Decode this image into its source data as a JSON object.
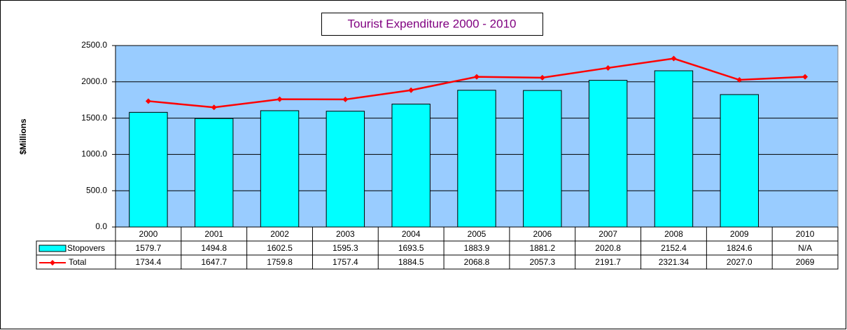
{
  "chart_data": {
    "type": "bar_line_table",
    "title": "Tourist Expenditure 2000 - 2010",
    "y_label": "$Millions",
    "categories": [
      "2000",
      "2001",
      "2002",
      "2003",
      "2004",
      "2005",
      "2006",
      "2007",
      "2008",
      "2009",
      "2010"
    ],
    "series": [
      {
        "name": "Stopovers",
        "type": "bar",
        "color": "#00ffff",
        "values": [
          1579.7,
          1494.8,
          1602.5,
          1595.3,
          1693.5,
          1883.9,
          1881.2,
          2020.8,
          2152.4,
          1824.6,
          null
        ],
        "value_labels": [
          "1579.7",
          "1494.8",
          "1602.5",
          "1595.3",
          "1693.5",
          "1883.9",
          "1881.2",
          "2020.8",
          "2152.4",
          "1824.6",
          "N/A"
        ]
      },
      {
        "name": "Total",
        "type": "line",
        "color": "#ff0000",
        "values": [
          1734.4,
          1647.7,
          1759.8,
          1757.4,
          1884.5,
          2068.8,
          2057.3,
          2191.7,
          2321.34,
          2027.0,
          2069
        ],
        "value_labels": [
          "1734.4",
          "1647.7",
          "1759.8",
          "1757.4",
          "1884.5",
          "2068.8",
          "2057.3",
          "2191.7",
          "2321.34",
          "2027.0",
          "2069"
        ]
      }
    ],
    "ylim": [
      0,
      2500
    ],
    "yticks": [
      {
        "value": 0,
        "label": "0.0"
      },
      {
        "value": 500,
        "label": "500.0"
      },
      {
        "value": 1000,
        "label": "1000.0"
      },
      {
        "value": 1500,
        "label": "1500.0"
      },
      {
        "value": 2000,
        "label": "2000.0"
      },
      {
        "value": 2500,
        "label": "2500.0"
      }
    ],
    "grid": true,
    "plot_color": "#99ccff"
  }
}
